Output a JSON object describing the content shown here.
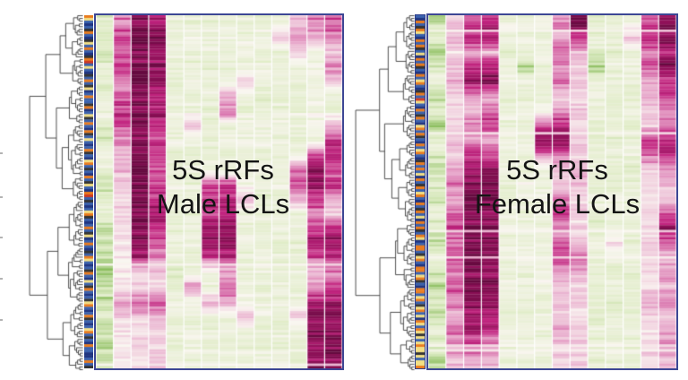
{
  "figure": {
    "background": "#ffffff",
    "cropped_axis_ticks_y": [
      170,
      219,
      264,
      310,
      356
    ],
    "panel_border_color": "#3d4795",
    "dendrogram_color": "#3b3b3b"
  },
  "chart_data": [
    {
      "type": "heatmap",
      "title": "5S rRFs Male LCLs",
      "title_line1": "5S rRFs",
      "title_line2": "Male LCLs",
      "legend_position": "none",
      "grid": false,
      "n_columns": 14,
      "n_row_bands": 24,
      "value_scale": "diverging: -2 = strong green (low), 0 = white, +3.5 = dark magenta (high); bands listed top-to-bottom per column",
      "colormap": {
        "white": "#faf6f1",
        "green_light": "#dfecc6",
        "green_strong": "#84ba55",
        "pink": "#e7a6ca",
        "magenta": "#c22580",
        "magenta_dark": "#8e1058",
        "magenta_deepest": "#650a3f"
      },
      "values": [
        [
          -0.9,
          -1.1,
          -1.3,
          -0.7,
          -1.0,
          -0.8,
          -0.5,
          -0.9,
          -1.1,
          -0.4,
          -0.8,
          -1.3,
          -1.0,
          -0.7,
          -1.5,
          -1.1,
          -1.6,
          -1.8,
          -1.3,
          -1.6,
          -1.1,
          -1.4,
          -1.7,
          -1.2
        ],
        [
          1.6,
          2.1,
          1.7,
          2.3,
          1.3,
          1.9,
          2.4,
          2.0,
          1.4,
          1.1,
          0.9,
          0.7,
          0.5,
          0.6,
          0.4,
          0.5,
          0.3,
          0.4,
          0.5,
          1.3,
          0.7,
          0.4,
          0.3,
          0.5
        ],
        [
          3.2,
          3.4,
          3.0,
          3.3,
          3.5,
          3.1,
          3.4,
          3.2,
          3.0,
          3.3,
          3.5,
          3.2,
          3.4,
          3.1,
          3.3,
          3.0,
          2.6,
          0.6,
          0.4,
          1.6,
          0.5,
          0.3,
          0.4,
          0.3
        ],
        [
          2.8,
          3.1,
          2.6,
          3.0,
          2.9,
          2.4,
          2.7,
          2.2,
          1.8,
          2.1,
          1.6,
          1.9,
          2.3,
          2.6,
          2.1,
          1.7,
          1.2,
          0.6,
          0.4,
          1.8,
          0.8,
          0.4,
          0.5,
          0.6
        ],
        [
          -0.6,
          -0.8,
          -0.5,
          -0.7,
          -0.9,
          -0.6,
          -0.4,
          -0.7,
          -0.5,
          -0.8,
          -0.6,
          -0.5,
          -0.7,
          -0.6,
          -0.8,
          -0.5,
          -0.6,
          -0.9,
          -0.7,
          -0.5,
          -0.8,
          -0.6,
          -0.7,
          -0.5
        ],
        [
          -0.7,
          -0.5,
          -0.8,
          -0.6,
          -0.4,
          -0.7,
          -0.6,
          0.7,
          -0.5,
          -0.7,
          -0.6,
          -0.8,
          -0.5,
          -0.6,
          -0.7,
          -0.5,
          -0.8,
          -0.6,
          1.3,
          -0.5,
          -0.7,
          -0.6,
          -0.5,
          -0.7
        ],
        [
          -0.6,
          -0.7,
          -0.5,
          -0.8,
          -0.6,
          -0.5,
          -0.7,
          -0.6,
          -0.8,
          -0.5,
          -0.6,
          1.7,
          2.3,
          2.0,
          2.7,
          2.9,
          2.1,
          -0.4,
          -0.6,
          0.8,
          -0.5,
          -0.7,
          -0.6,
          -0.5
        ],
        [
          -0.4,
          -0.5,
          -0.4,
          -0.6,
          -0.5,
          1.2,
          1.6,
          -0.5,
          -0.4,
          -0.6,
          -0.5,
          2.1,
          2.7,
          2.5,
          3.1,
          3.1,
          2.3,
          1.0,
          1.7,
          1.2,
          -0.4,
          -0.5,
          -0.6,
          -0.4
        ],
        [
          -0.5,
          -0.6,
          -0.4,
          -0.7,
          0.6,
          -0.5,
          -0.6,
          -0.4,
          -0.5,
          -0.7,
          -0.5,
          -0.6,
          0.9,
          -0.5,
          -0.6,
          -0.4,
          -0.7,
          -0.5,
          -0.6,
          -0.4,
          0.7,
          -0.5,
          -0.6,
          -0.5
        ],
        [
          -0.6,
          -0.4,
          -0.7,
          -0.5,
          -0.6,
          -0.8,
          -0.5,
          -0.6,
          -0.4,
          -0.7,
          -0.5,
          -0.6,
          -0.8,
          -0.5,
          -0.7,
          -0.6,
          -0.4,
          -0.5,
          -0.7,
          -0.6,
          -0.5,
          -0.8,
          -0.6,
          -0.5
        ],
        [
          -0.5,
          0.6,
          -0.6,
          -0.4,
          -0.5,
          -0.7,
          -0.5,
          -0.4,
          -0.6,
          -0.5,
          -0.7,
          -0.4,
          -0.6,
          -0.5,
          -0.4,
          -0.7,
          -0.5,
          -0.6,
          -0.4,
          -0.5,
          -0.6,
          -0.5,
          -0.7,
          -0.4
        ],
        [
          0.8,
          1.3,
          0.6,
          -0.4,
          -0.5,
          -0.6,
          -0.4,
          -0.5,
          -0.6,
          -0.4,
          1.5,
          1.9,
          1.3,
          -0.5,
          -0.4,
          -0.6,
          -0.5,
          -0.4,
          -0.6,
          -0.5,
          0.7,
          -0.4,
          -0.5,
          -0.6
        ],
        [
          1.5,
          0.8,
          -0.4,
          -0.5,
          -0.6,
          -0.4,
          -0.5,
          -0.4,
          -0.6,
          1.9,
          2.7,
          2.8,
          2.1,
          1.3,
          2.0,
          2.6,
          1.8,
          0.6,
          1.3,
          2.2,
          3.0,
          3.2,
          2.7,
          3.0
        ],
        [
          2.0,
          1.3,
          0.6,
          1.5,
          0.7,
          -0.4,
          -0.5,
          1.2,
          2.2,
          2.6,
          1.8,
          2.4,
          1.1,
          0.7,
          2.6,
          3.0,
          2.4,
          1.6,
          2.0,
          2.8,
          3.2,
          3.0,
          3.4,
          3.2
        ]
      ],
      "row_annotation": {
        "palette": {
          "B": "#3a62ae",
          "N": "#1f3480",
          "O": "#e97c1f",
          "K": "#333333",
          "Y": "#f2df84",
          "R": "#cf3a23"
        },
        "sequence": "OYBNBKOBNKYBOBNKORBYBNKBOBKYNBOBBKONBYKBOBNOKBYBNBOKBNYOBKBNOBKYBNORBKBNBYOKBNBOBKYNBOBNKBOYBNBKOBNYBKOBNBKYOBNBOKBNBYOBKBNOBBNNBOBK"
      },
      "dendrogram": {
        "orientation": "left",
        "leaves": 130,
        "color": "#3b3b3b"
      }
    },
    {
      "type": "heatmap",
      "title": "5S rRFs Female LCLs",
      "title_line1": "5S rRFs",
      "title_line2": "Female LCLs",
      "legend_position": "none",
      "grid": false,
      "n_columns": 14,
      "n_row_bands": 24,
      "value_scale": "diverging: -2 = strong green (low), 0 = white, +3.5 = dark magenta (high); bands listed top-to-bottom per column",
      "colormap": {
        "white": "#faf6f1",
        "green_light": "#dfecc6",
        "green_strong": "#84ba55",
        "pink": "#e7a6ca",
        "magenta": "#c22580",
        "magenta_dark": "#8e1058",
        "magenta_deepest": "#650a3f"
      },
      "values": [
        [
          -1.6,
          -0.8,
          -1.8,
          -1.2,
          -0.6,
          -1.4,
          -1.0,
          -1.8,
          -0.8,
          -1.2,
          -1.6,
          -0.9,
          -1.3,
          -0.7,
          -1.1,
          -1.5,
          -0.8,
          -1.2,
          -1.6,
          -1.0,
          -1.4,
          -0.8,
          -1.2,
          -1.5
        ],
        [
          0.6,
          0.9,
          0.5,
          0.8,
          1.0,
          0.6,
          0.4,
          0.7,
          0.9,
          0.5,
          1.2,
          1.5,
          1.0,
          1.7,
          2.1,
          1.6,
          1.8,
          1.5,
          2.0,
          1.6,
          1.2,
          1.7,
          1.4,
          0.9
        ],
        [
          1.9,
          2.5,
          1.1,
          2.3,
          2.9,
          1.4,
          0.8,
          1.7,
          1.2,
          2.1,
          2.7,
          3.2,
          3.4,
          3.0,
          3.4,
          3.2,
          3.4,
          3.2,
          3.5,
          3.3,
          3.0,
          2.6,
          1.8,
          1.1
        ],
        [
          2.1,
          2.7,
          0.7,
          2.5,
          3.0,
          1.1,
          1.4,
          2.2,
          0.9,
          1.7,
          2.9,
          3.3,
          3.1,
          2.6,
          3.2,
          3.0,
          3.0,
          2.8,
          3.2,
          3.0,
          2.4,
          2.0,
          1.1,
          0.7
        ],
        [
          -0.6,
          -0.5,
          -0.7,
          -0.6,
          -0.4,
          -0.7,
          -0.5,
          -0.6,
          -0.4,
          -0.7,
          -0.5,
          -0.6,
          -0.7,
          -0.4,
          -0.6,
          -0.5,
          -0.7,
          -0.6,
          -0.4,
          -0.5,
          -0.7,
          -0.5,
          -0.6,
          -0.4
        ],
        [
          -0.7,
          -0.5,
          -0.6,
          -1.6,
          -0.5,
          -0.7,
          -0.4,
          -0.6,
          -0.5,
          -0.7,
          -0.6,
          -0.4,
          -0.5,
          -0.7,
          -0.5,
          -0.6,
          -0.4,
          -0.7,
          -0.5,
          -0.6,
          -0.7,
          -0.4,
          -0.6,
          -0.5
        ],
        [
          -0.5,
          -0.6,
          -0.4,
          -0.7,
          -0.5,
          -0.6,
          -0.4,
          2.0,
          3.0,
          1.2,
          -0.5,
          -0.6,
          -0.4,
          -0.5,
          -0.7,
          -0.5,
          -0.6,
          -0.4,
          -0.5,
          -0.6,
          -0.4,
          -0.7,
          -0.5,
          -0.6
        ],
        [
          1.2,
          0.8,
          1.6,
          1.0,
          1.4,
          0.6,
          0.9,
          2.6,
          3.2,
          1.2,
          0.7,
          0.5,
          1.4,
          1.8,
          1.2,
          1.6,
          1.8,
          1.2,
          0.6,
          0.8,
          0.5,
          0.9,
          0.6,
          0.4
        ],
        [
          3.2,
          2.0,
          0.8,
          0.4,
          0.6,
          0.3,
          0.5,
          0.4,
          0.6,
          0.3,
          1.0,
          0.6,
          0.4,
          0.5,
          0.3,
          0.6,
          1.5,
          1.0,
          0.4,
          0.6,
          0.3,
          0.5,
          0.4,
          0.6
        ],
        [
          -0.8,
          -0.6,
          -0.9,
          -1.8,
          -0.7,
          -0.5,
          -0.8,
          -0.6,
          -0.9,
          -0.7,
          -0.5,
          -0.8,
          -0.6,
          -0.7,
          -0.9,
          -0.5,
          -0.8,
          -0.6,
          -0.7,
          -0.5,
          -0.9,
          -0.6,
          -0.8,
          -0.7
        ],
        [
          -0.6,
          -0.5,
          -0.7,
          -0.4,
          -0.6,
          -0.5,
          -0.7,
          -0.4,
          -0.6,
          -0.5,
          -0.7,
          -0.6,
          -0.4,
          -0.5,
          -0.7,
          0.6,
          -0.5,
          -0.6,
          -0.4,
          -0.7,
          -0.5,
          -0.6,
          -0.4,
          -0.5
        ],
        [
          -0.5,
          0.8,
          -0.6,
          -0.4,
          -0.5,
          -0.7,
          -0.4,
          -0.6,
          -0.5,
          -0.4,
          -0.7,
          -0.5,
          -0.6,
          -0.4,
          -0.5,
          -0.6,
          -0.4,
          -0.7,
          -0.5,
          -0.6,
          -0.4,
          -0.5,
          -0.7,
          -0.5
        ],
        [
          1.8,
          2.4,
          1.4,
          2.0,
          0.8,
          1.2,
          0.5,
          0.7,
          2.2,
          1.6,
          0.6,
          0.4,
          0.3,
          0.5,
          0.4,
          0.6,
          0.3,
          0.5,
          0.4,
          1.2,
          0.5,
          0.3,
          0.6,
          0.4
        ],
        [
          2.8,
          3.2,
          2.4,
          3.0,
          1.8,
          2.2,
          1.0,
          1.6,
          2.4,
          2.0,
          1.2,
          0.8,
          0.4,
          1.8,
          2.6,
          1.4,
          0.6,
          1.2,
          0.8,
          1.5,
          0.5,
          0.9,
          1.3,
          0.7
        ]
      ],
      "row_annotation": {
        "palette": {
          "B": "#3a62ae",
          "N": "#1f3480",
          "O": "#e97c1f",
          "K": "#333333",
          "Y": "#f2df84",
          "R": "#cf3a23"
        },
        "sequence": "BNOBKOYBNOBOKBYNOBOKBNOBYOBNKOBRYBNOBKOBNYOBOKBNOBYOBNKOBOBYNOBKOBYOBNOBKOBYNOBOKBOYNBOOBKYOBNOOBYOKBNOOBYOBKYOBYNOYBOYKYBYOYYKYBYYO"
      },
      "dendrogram": {
        "orientation": "left",
        "leaves": 130,
        "color": "#3b3b3b"
      }
    }
  ]
}
